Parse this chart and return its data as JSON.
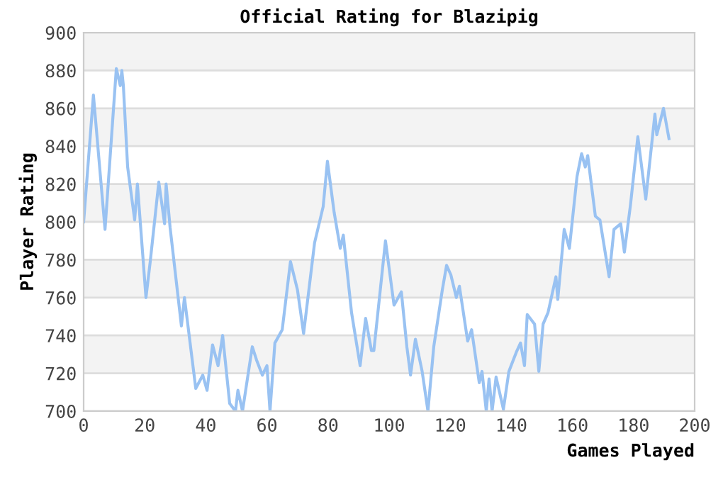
{
  "chart_data": {
    "type": "line",
    "title": "Official Rating for Blazipig",
    "xlabel": "Games Played",
    "ylabel": "Player Rating",
    "x": [
      0,
      3.2,
      7,
      10.7,
      12,
      12.5,
      13,
      14.4,
      16.7,
      17.6,
      20.4,
      21.8,
      24.6,
      26.5,
      27,
      28.3,
      32,
      33,
      36.7,
      39,
      40.4,
      42.2,
      44,
      45.5,
      47.8,
      49.7,
      50.5,
      52,
      55.2,
      56.6,
      58.5,
      60,
      61,
      62.6,
      65,
      67.7,
      70,
      72,
      75.6,
      78.4,
      79.8,
      82,
      84,
      85,
      87.7,
      90.5,
      92.3,
      94.2,
      95,
      98.8,
      101.6,
      104,
      105.8,
      107,
      108.6,
      110.8,
      112.7,
      114.6,
      117.4,
      118.8,
      120.2,
      122,
      123,
      125.7,
      127,
      129.5,
      130.4,
      131.8,
      132.7,
      133.7,
      135,
      137.4,
      139.2,
      141.6,
      143,
      144.3,
      145.2,
      147.6,
      149,
      150.4,
      152,
      154.6,
      155.2,
      157.3,
      159,
      161.5,
      163,
      164.2,
      165,
      167.5,
      169,
      172,
      173.6,
      175.8,
      177,
      179,
      181.4,
      184,
      187,
      187.6,
      189.8,
      191.6
    ],
    "series": [
      {
        "color": "#99c2f2",
        "values": [
          800,
          867,
          796,
          881,
          872,
          880,
          872,
          829,
          801,
          820,
          760,
          779,
          821,
          799,
          820,
          797,
          745,
          760,
          712,
          719,
          711,
          735,
          724,
          740,
          704,
          700,
          711,
          700,
          734,
          727,
          719,
          724,
          700,
          736,
          743,
          779,
          764,
          741,
          789,
          808,
          832,
          805,
          786,
          793,
          752,
          724,
          749,
          732,
          732,
          790,
          756,
          763,
          734,
          719,
          738,
          721,
          700,
          734,
          764,
          777,
          772,
          760,
          766,
          737,
          743,
          715,
          721,
          700,
          717,
          700,
          718,
          701,
          721,
          731,
          736,
          724,
          751,
          746,
          721,
          746,
          752,
          771,
          759,
          796,
          786,
          824,
          836,
          829,
          835,
          803,
          801,
          771,
          796,
          799,
          784,
          809,
          845,
          812,
          857,
          846,
          860,
          844
        ]
      }
    ],
    "xlim": [
      0,
      200
    ],
    "xticks": [
      0,
      20,
      40,
      60,
      80,
      100,
      120,
      140,
      160,
      180,
      200
    ],
    "ylim": [
      700,
      900
    ],
    "yticks": [
      700,
      720,
      740,
      760,
      780,
      800,
      820,
      840,
      860,
      880,
      900
    ],
    "grid": "y",
    "marker": "none",
    "line_style": "solid"
  }
}
